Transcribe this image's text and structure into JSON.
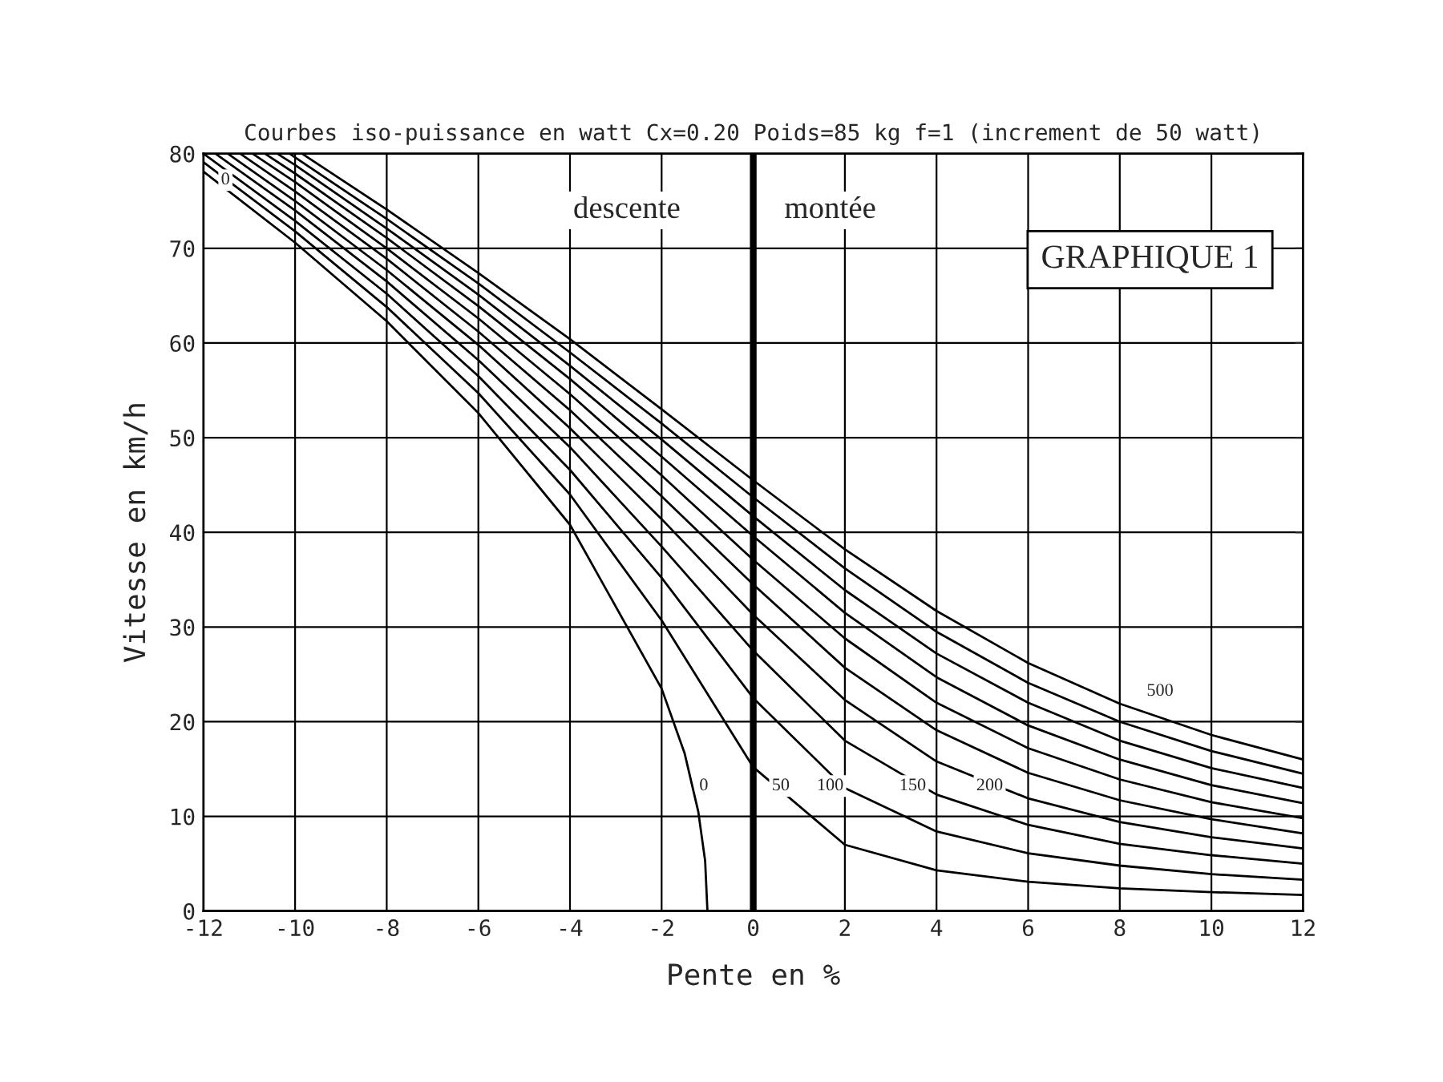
{
  "chart_data": {
    "type": "line",
    "title": "Courbes iso-puissance en watt Cx=0.20 Poids=85 kg f=1 (increment de 50 watt)",
    "xlabel": "Pente en %",
    "ylabel": "Vitesse en km/h",
    "xlim": [
      -12,
      12
    ],
    "xticks": [
      -12,
      -10,
      -8,
      -6,
      -4,
      -2,
      0,
      2,
      4,
      6,
      8,
      10,
      12
    ],
    "ylim": [
      0,
      80
    ],
    "yticks": [
      0,
      10,
      20,
      30,
      40,
      50,
      60,
      70,
      80
    ],
    "grid": true,
    "marker": "none",
    "line_style": "solid",
    "ref_lines": [
      {
        "axis": "x",
        "value": 0,
        "color": "#000000"
      }
    ],
    "series": [
      {
        "color": "#000000",
        "x": [
          -12,
          -10,
          -8,
          -6,
          -4,
          -2,
          -1.5,
          -1.2,
          -1.05,
          -1
        ],
        "values": [
          78.1,
          70.6,
          62.3,
          52.6,
          40.8,
          23.5,
          16.7,
          10.5,
          5.3,
          0
        ]
      },
      {
        "color": "#000000",
        "x": [
          -12,
          -10,
          -8,
          -6,
          -4,
          -2,
          0,
          2,
          4,
          6,
          8,
          10,
          12
        ],
        "values": [
          79.1,
          71.8,
          63.8,
          54.7,
          44.0,
          30.7,
          15.2,
          7.0,
          4.3,
          3.1,
          2.4,
          2.0,
          1.7
        ]
      },
      {
        "color": "#000000",
        "x": [
          -12,
          -10,
          -8,
          -6,
          -4,
          -2,
          0,
          2,
          4,
          6,
          8,
          10,
          12
        ],
        "values": [
          80,
          72.9,
          65.2,
          56.5,
          46.6,
          35.2,
          22.5,
          13.0,
          8.4,
          6.1,
          4.8,
          3.9,
          3.3
        ]
      },
      {
        "color": "#000000",
        "x": [
          -11.74,
          -10,
          -8,
          -6,
          -4,
          -2,
          0,
          2,
          4,
          6,
          8,
          10,
          12
        ],
        "values": [
          80,
          74.0,
          66.5,
          58.2,
          49.0,
          38.5,
          27.5,
          18.0,
          12.3,
          9.1,
          7.1,
          5.9,
          5.0
        ]
      },
      {
        "color": "#000000",
        "x": [
          -11.47,
          -10,
          -8,
          -6,
          -4,
          -2,
          0,
          2,
          4,
          6,
          8,
          10,
          12
        ],
        "values": [
          80,
          75.0,
          67.7,
          59.8,
          51.0,
          41.4,
          31.3,
          22.3,
          15.8,
          11.9,
          9.4,
          7.8,
          6.6
        ]
      },
      {
        "color": "#000000",
        "x": [
          -11.2,
          -10,
          -8,
          -6,
          -4,
          -2,
          0,
          2,
          4,
          6,
          8,
          10,
          12
        ],
        "values": [
          80,
          76.0,
          68.9,
          61.2,
          52.9,
          43.8,
          34.5,
          25.7,
          19.1,
          14.6,
          11.7,
          9.7,
          8.2
        ]
      },
      {
        "color": "#000000",
        "x": [
          -10.93,
          -10,
          -8,
          -6,
          -4,
          -2,
          0,
          2,
          4,
          6,
          8,
          10,
          12
        ],
        "values": [
          80,
          77.0,
          70.0,
          62.6,
          54.6,
          46.0,
          37.1,
          28.8,
          22.0,
          17.2,
          13.9,
          11.5,
          9.8
        ]
      },
      {
        "color": "#000000",
        "x": [
          -10.66,
          -10,
          -8,
          -6,
          -4,
          -2,
          0,
          2,
          4,
          6,
          8,
          10,
          12
        ],
        "values": [
          80,
          77.9,
          71.1,
          63.9,
          56.2,
          48.0,
          39.6,
          31.5,
          24.7,
          19.6,
          16.0,
          13.3,
          11.4
        ]
      },
      {
        "color": "#000000",
        "x": [
          -10.39,
          -10,
          -8,
          -6,
          -4,
          -2,
          0,
          2,
          4,
          6,
          8,
          10,
          12
        ],
        "values": [
          80,
          78.8,
          72.1,
          65.1,
          57.6,
          49.8,
          41.7,
          33.9,
          27.2,
          22.0,
          18.0,
          15.1,
          13.0
        ]
      },
      {
        "color": "#000000",
        "x": [
          -10.12,
          -10,
          -8,
          -6,
          -4,
          -2,
          0,
          2,
          4,
          6,
          8,
          10,
          12
        ],
        "values": [
          80,
          79.6,
          73.1,
          66.3,
          59.0,
          51.5,
          43.7,
          36.2,
          29.5,
          24.1,
          20.0,
          16.9,
          14.5
        ]
      },
      {
        "color": "#000000",
        "x": [
          -9.85,
          -8,
          -6,
          -4,
          -2,
          0,
          2,
          4,
          6,
          8,
          10,
          12
        ],
        "values": [
          80,
          74.1,
          67.4,
          60.4,
          53.0,
          45.5,
          38.2,
          31.7,
          26.2,
          21.9,
          18.6,
          16.0
        ]
      }
    ],
    "annotations": [
      "0",
      "0",
      "50",
      "100",
      "150",
      "200",
      "500",
      "descente",
      "montée",
      "GRAPHIQUE 1"
    ]
  }
}
